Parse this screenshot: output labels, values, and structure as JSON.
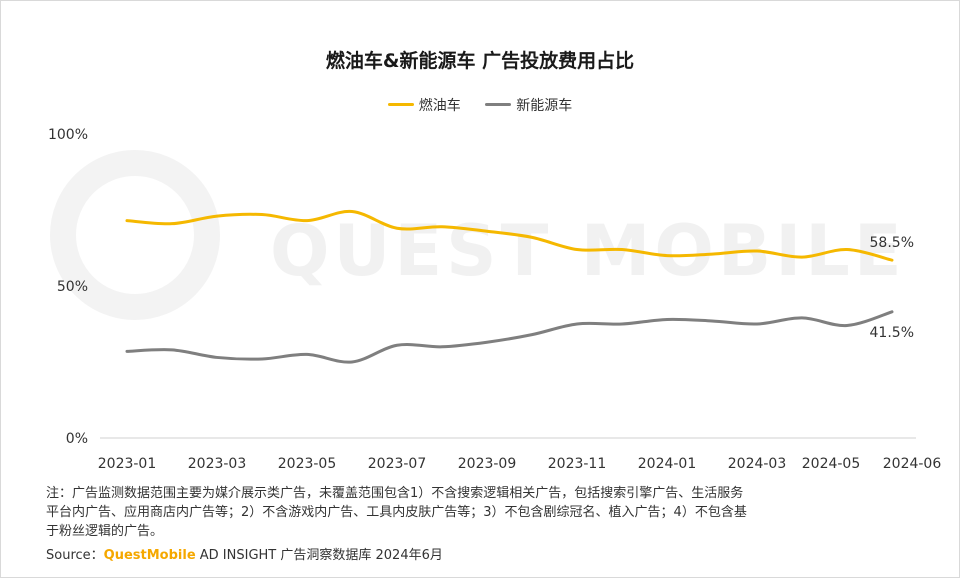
{
  "chart_data": {
    "type": "line",
    "title": "燃油车&新能源车 广告投放费用占比",
    "categories": [
      "2023-01",
      "2023-02",
      "2023-03",
      "2023-04",
      "2023-05",
      "2023-06",
      "2023-07",
      "2023-08",
      "2023-09",
      "2023-10",
      "2023-11",
      "2023-12",
      "2024-01",
      "2024-02",
      "2024-03",
      "2024-04",
      "2024-05",
      "2024-06"
    ],
    "x_tick_labels": [
      "2023-01",
      "2023-03",
      "2023-05",
      "2023-07",
      "2023-09",
      "2023-11",
      "2024-01",
      "2024-03",
      "2024-05",
      "2024-06"
    ],
    "y_tick_labels": [
      "100%",
      "50%",
      "0%"
    ],
    "ylim": [
      0,
      100
    ],
    "legend_position": "top",
    "series": [
      {
        "name": "燃油车",
        "color": "#f5b800",
        "values": [
          71.5,
          70.5,
          73.0,
          73.5,
          71.5,
          74.5,
          69.0,
          69.5,
          68.0,
          66.0,
          62.0,
          62.0,
          60.0,
          60.5,
          61.5,
          59.5,
          62.0,
          58.5
        ]
      },
      {
        "name": "新能源车",
        "color": "#7f7f7f",
        "values": [
          28.5,
          29.0,
          26.5,
          26.0,
          27.5,
          25.0,
          30.5,
          30.0,
          31.5,
          34.0,
          37.5,
          37.5,
          39.0,
          38.5,
          37.5,
          39.5,
          37.0,
          41.5
        ]
      }
    ],
    "end_labels": [
      "58.5%",
      "41.5%"
    ]
  },
  "watermark": "QUEST MOBILE",
  "note_lines": [
    "注：广告监测数据范围主要为媒介展示类广告，未覆盖范围包含1）不含搜索逻辑相关广告，包括搜索引擎广告、生活服务",
    "平台内广告、应用商店内广告等；2）不含游戏内广告、工具内皮肤广告等；3）不包含剧综冠名、植入广告；4）不包含基",
    "于粉丝逻辑的广告。"
  ],
  "source": {
    "label": "Source：",
    "brand": "QuestMobile",
    "rest": " AD INSIGHT 广告洞察数据库 2024年6月"
  }
}
